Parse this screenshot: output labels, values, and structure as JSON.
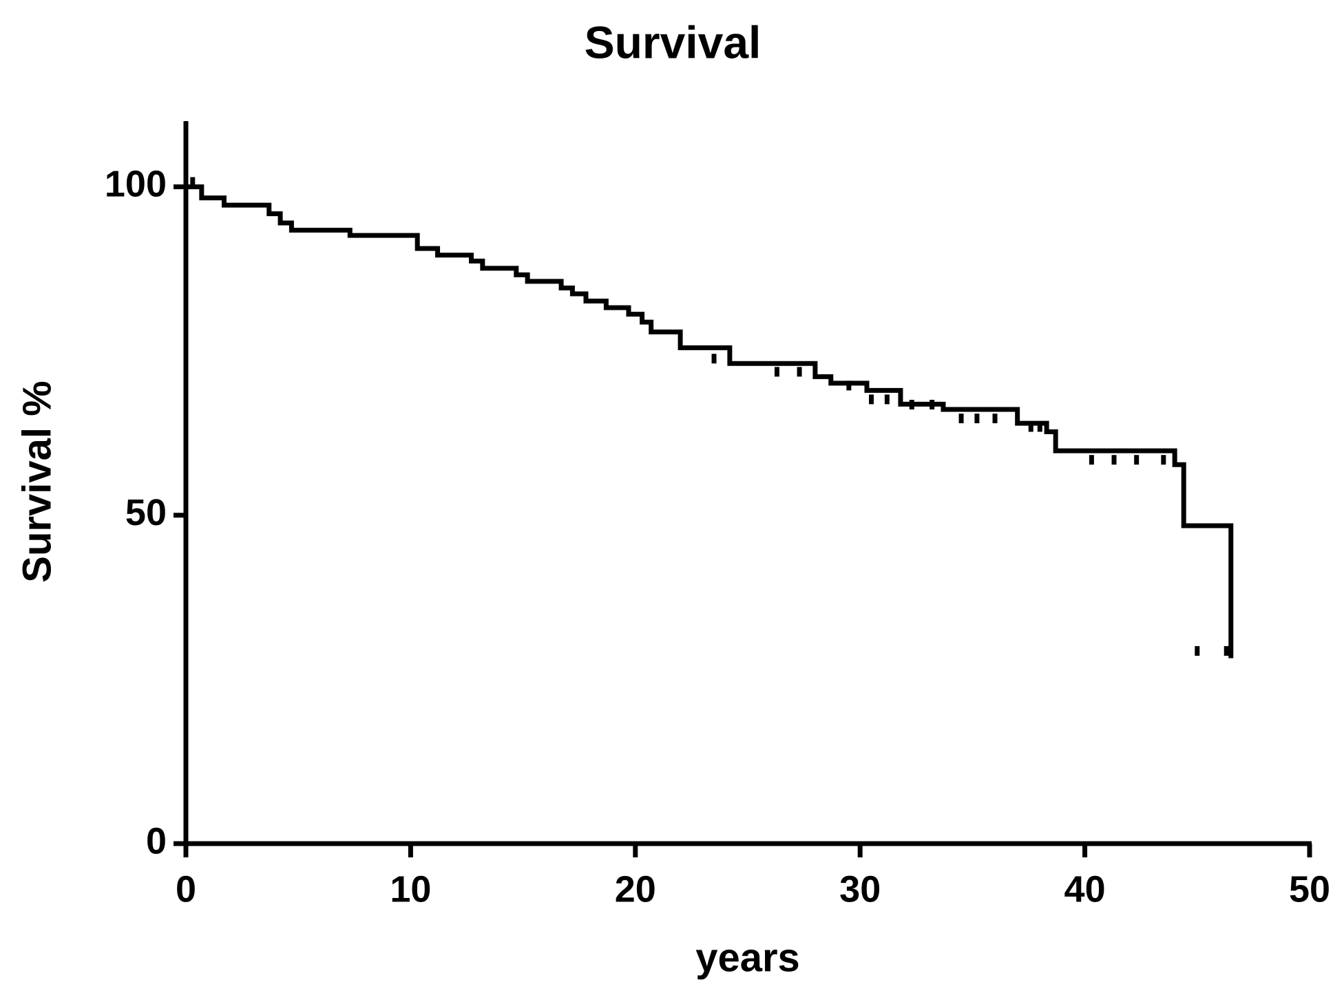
{
  "chart_data": {
    "type": "step",
    "title": "Survival",
    "x_label": "years",
    "y_label": "Survival %",
    "x": [
      0,
      0.7,
      1.7,
      3.7,
      4.2,
      4.7,
      7.3,
      10.3,
      11.2,
      12.7,
      13.2,
      14.7,
      15.2,
      16.7,
      17.2,
      17.8,
      18.7,
      19.7,
      20.3,
      20.7,
      22,
      24.2,
      28,
      28.7,
      30.3,
      31.8,
      33.7,
      37,
      38.3,
      38.7,
      44,
      44.4,
      46.5
    ],
    "values": [
      100,
      98.3,
      97.2,
      95.9,
      94.5,
      93.4,
      92.6,
      90.6,
      89.6,
      88.7,
      87.6,
      86.6,
      85.6,
      84.6,
      83.7,
      82.6,
      81.6,
      80.6,
      79.4,
      77.9,
      75.5,
      73.1,
      71.1,
      70.1,
      69,
      66.9,
      66.1,
      64,
      62.7,
      59.8,
      57.7,
      48.4,
      28.6
    ],
    "censored": {
      "x": [
        0.3,
        23.5,
        26.3,
        27.3,
        29.5,
        30.5,
        31.2,
        32.3,
        33.2,
        34.5,
        35.2,
        36,
        37.6,
        38,
        40.3,
        41.3,
        42.3,
        43.5,
        45,
        46.3
      ],
      "values": [
        100,
        73.1,
        71.1,
        71.1,
        69,
        66.9,
        66.9,
        66.1,
        66.1,
        64,
        64,
        64,
        62.7,
        62.7,
        57.7,
        57.7,
        57.7,
        57.7,
        28.6,
        28.6
      ]
    },
    "color": "#000000",
    "xlim": [
      0,
      50
    ],
    "xticks": [
      0,
      10,
      20,
      30,
      40,
      50
    ],
    "ylim": [
      0,
      110
    ],
    "yticks": [
      0,
      50,
      100
    ]
  }
}
